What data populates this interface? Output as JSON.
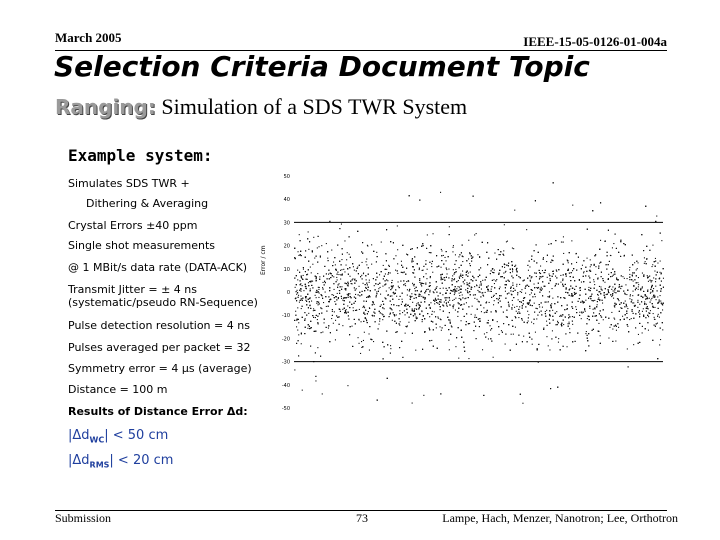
{
  "header": {
    "date": "March 2005",
    "doc_id": "IEEE-15-05-0126-01-004a"
  },
  "title": "Selection Criteria Document Topic",
  "subtitle": {
    "keyword": "Ranging:",
    "text": "Simulation of a SDS TWR System"
  },
  "example_heading": "Example system:",
  "params": [
    "Simulates SDS TWR +",
    "Dithering & Averaging",
    "Crystal Errors ±40 ppm",
    "Single shot measurements",
    "@ 1 MBit/s data rate (DATA-ACK)",
    "Transmit Jitter = ± 4 ns",
    "(systematic/pseudo RN-Sequence)",
    "Pulse detection resolution = 4 ns",
    "Pulses averaged per packet = 32",
    "Symmetry error = 4 µs (average)",
    "Distance = 100 m"
  ],
  "results_heading": "Results of Distance Error Δd:",
  "results": [
    {
      "prefix": "|Δd",
      "sub": "WC",
      "suffix": "| < 50 cm"
    },
    {
      "prefix": "|Δd",
      "sub": "RMS",
      "suffix": "| < 20 cm"
    }
  ],
  "chart_data": {
    "type": "scatter",
    "ylabel": "Error / cm",
    "yticks": [
      50,
      40,
      30,
      20,
      10,
      0,
      -10,
      -20,
      -30,
      -40,
      -50
    ],
    "ylim": [
      -50,
      50
    ],
    "hlines": [
      30,
      -30
    ],
    "grid": false,
    "points_description": "dense random scatter of distance errors, most within ±30 cm"
  },
  "footer": {
    "left": "Submission",
    "page": "73",
    "authors": "Lampe, Hach, Menzer, Nanotron; Lee, Orthotron"
  }
}
